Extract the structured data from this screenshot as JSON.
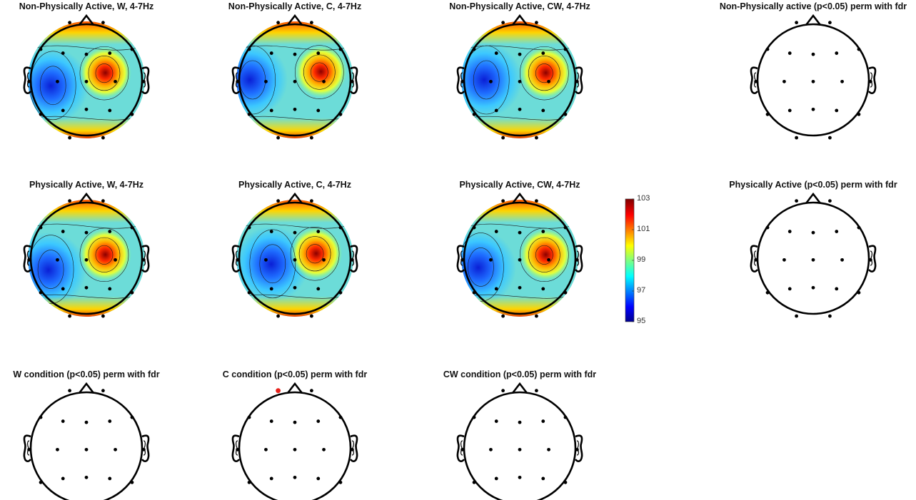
{
  "figure": {
    "panels": [
      {
        "title": "Non-Physically Active, W, 4-7Hz",
        "type": "map",
        "hot": [
          0.66,
          0.44
        ],
        "cold": [
          0.2,
          0.55
        ]
      },
      {
        "title": "Non-Physically Active, C, 4-7Hz",
        "type": "map",
        "hot": [
          0.72,
          0.43
        ],
        "cold": [
          0.12,
          0.5
        ]
      },
      {
        "title": "Non-Physically Active, CW, 4-7Hz",
        "type": "map",
        "hot": [
          0.72,
          0.44
        ],
        "cold": [
          0.2,
          0.5
        ]
      },
      {
        "title": "Non-Physically active (p<0.05) perm with fdr",
        "type": "stat",
        "sig": []
      },
      {
        "title": "Physically Active, W, 4-7Hz",
        "type": "map",
        "hot": [
          0.66,
          0.47
        ],
        "cold": [
          0.18,
          0.6
        ]
      },
      {
        "title": "Physically Active, C, 4-7Hz",
        "type": "map",
        "hot": [
          0.68,
          0.46
        ],
        "cold": [
          0.3,
          0.55
        ]
      },
      {
        "title": "Physically Active, CW, 4-7Hz",
        "type": "map",
        "hot": [
          0.72,
          0.47
        ],
        "cold": [
          0.15,
          0.58
        ]
      },
      {
        "title": "Physically Active (p<0.05) perm with fdr",
        "type": "stat",
        "sig": []
      },
      {
        "title": "W condition (p<0.05) perm with fdr",
        "type": "stat",
        "sig": []
      },
      {
        "title": "C condition (p<0.05) perm with fdr",
        "type": "stat",
        "sig": [
          "Fp1"
        ]
      },
      {
        "title": "CW condition (p<0.05) perm with fdr",
        "type": "stat",
        "sig": []
      }
    ],
    "colorbar": {
      "min": 95,
      "max": 103,
      "ticks": [
        "95",
        "97",
        "99",
        "101",
        "103"
      ]
    },
    "colors": {
      "head": "#000000",
      "electrode": "#000000",
      "significant": "#e8221b"
    }
  },
  "chart_data": {
    "type": "heatmap",
    "description_values": "Topographic scalp maps of theta (4-7Hz) power",
    "color_range": [
      95,
      103
    ],
    "colorbar_ticks": [
      95,
      97,
      99,
      101,
      103
    ],
    "maps": [
      {
        "title": "Non-Physically Active, W, 4-7Hz",
        "max_region": "right-central",
        "min_region": "left-temporal"
      },
      {
        "title": "Non-Physically Active, C, 4-7Hz",
        "max_region": "right-central",
        "min_region": "left-temporal"
      },
      {
        "title": "Non-Physically Active, CW, 4-7Hz",
        "max_region": "right-central",
        "min_region": "left-temporal"
      },
      {
        "title": "Physically Active, W, 4-7Hz",
        "max_region": "right-central",
        "min_region": "left-temporal"
      },
      {
        "title": "Physically Active, C, 4-7Hz",
        "max_region": "right-central",
        "min_region": "left-temporal"
      },
      {
        "title": "Physically Active, CW, 4-7Hz",
        "max_region": "right-central",
        "min_region": "left-temporal"
      }
    ],
    "significance_maps": [
      {
        "title": "Non-Physically active (p<0.05) perm with fdr",
        "significant_electrodes": 0
      },
      {
        "title": "Physically Active (p<0.05) perm with fdr",
        "significant_electrodes": 0
      },
      {
        "title": "W condition (p<0.05) perm with fdr",
        "significant_electrodes": 0
      },
      {
        "title": "C condition (p<0.05) perm with fdr",
        "significant_electrodes": 1
      },
      {
        "title": "CW condition (p<0.05) perm with fdr",
        "significant_electrodes": 0
      }
    ]
  }
}
